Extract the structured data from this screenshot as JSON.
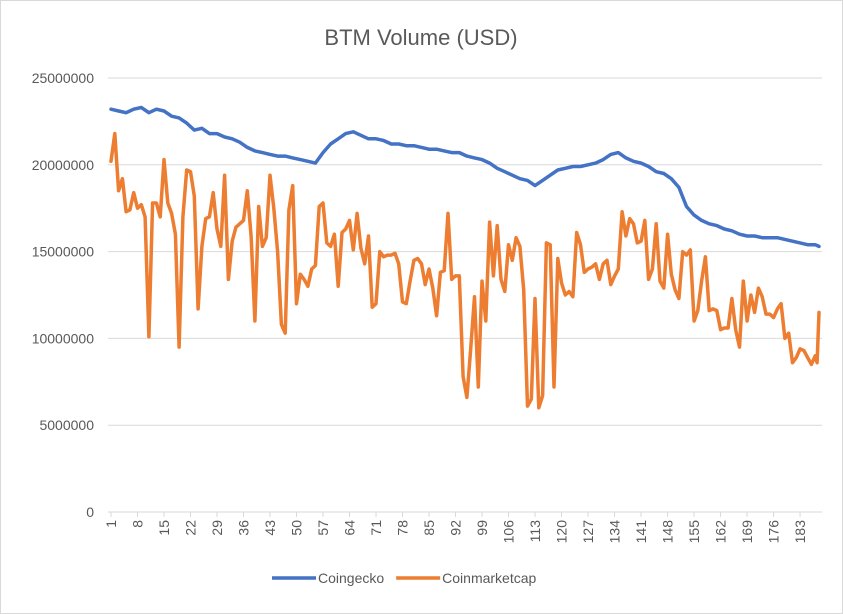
{
  "chart_data": {
    "type": "line",
    "title": "BTM Volume (USD)",
    "xlabel": "",
    "ylabel": "",
    "ylim": [
      0,
      25000000
    ],
    "y_ticks": [
      0,
      5000000,
      10000000,
      15000000,
      20000000,
      25000000
    ],
    "y_tick_labels": [
      "0",
      "5000000",
      "10000000",
      "15000000",
      "20000000",
      "25000000"
    ],
    "x_range": [
      1,
      188
    ],
    "x_ticks": [
      1,
      8,
      15,
      22,
      29,
      36,
      43,
      50,
      57,
      64,
      71,
      78,
      85,
      92,
      99,
      106,
      113,
      120,
      127,
      134,
      141,
      148,
      155,
      162,
      169,
      176,
      183
    ],
    "grid": "horizontal",
    "legend_position": "bottom",
    "series": [
      {
        "name": "Coingecko",
        "color": "#4472C4",
        "points": [
          [
            1,
            23200000
          ],
          [
            3,
            23100000
          ],
          [
            5,
            23000000
          ],
          [
            7,
            23200000
          ],
          [
            9,
            23300000
          ],
          [
            11,
            23000000
          ],
          [
            13,
            23200000
          ],
          [
            15,
            23100000
          ],
          [
            17,
            22800000
          ],
          [
            19,
            22700000
          ],
          [
            21,
            22400000
          ],
          [
            23,
            22000000
          ],
          [
            25,
            22100000
          ],
          [
            27,
            21800000
          ],
          [
            29,
            21800000
          ],
          [
            31,
            21600000
          ],
          [
            33,
            21500000
          ],
          [
            35,
            21300000
          ],
          [
            37,
            21000000
          ],
          [
            39,
            20800000
          ],
          [
            41,
            20700000
          ],
          [
            43,
            20600000
          ],
          [
            45,
            20500000
          ],
          [
            47,
            20500000
          ],
          [
            49,
            20400000
          ],
          [
            51,
            20300000
          ],
          [
            53,
            20200000
          ],
          [
            55,
            20100000
          ],
          [
            57,
            20700000
          ],
          [
            59,
            21200000
          ],
          [
            61,
            21500000
          ],
          [
            63,
            21800000
          ],
          [
            65,
            21900000
          ],
          [
            67,
            21700000
          ],
          [
            69,
            21500000
          ],
          [
            71,
            21500000
          ],
          [
            73,
            21400000
          ],
          [
            75,
            21200000
          ],
          [
            77,
            21200000
          ],
          [
            79,
            21100000
          ],
          [
            81,
            21100000
          ],
          [
            83,
            21000000
          ],
          [
            85,
            20900000
          ],
          [
            87,
            20900000
          ],
          [
            89,
            20800000
          ],
          [
            91,
            20700000
          ],
          [
            93,
            20700000
          ],
          [
            95,
            20500000
          ],
          [
            97,
            20400000
          ],
          [
            99,
            20300000
          ],
          [
            101,
            20100000
          ],
          [
            103,
            19800000
          ],
          [
            105,
            19600000
          ],
          [
            107,
            19400000
          ],
          [
            109,
            19200000
          ],
          [
            111,
            19100000
          ],
          [
            113,
            18800000
          ],
          [
            115,
            19100000
          ],
          [
            117,
            19400000
          ],
          [
            119,
            19700000
          ],
          [
            121,
            19800000
          ],
          [
            123,
            19900000
          ],
          [
            125,
            19900000
          ],
          [
            127,
            20000000
          ],
          [
            129,
            20100000
          ],
          [
            131,
            20300000
          ],
          [
            133,
            20600000
          ],
          [
            135,
            20700000
          ],
          [
            137,
            20400000
          ],
          [
            139,
            20200000
          ],
          [
            141,
            20100000
          ],
          [
            143,
            19900000
          ],
          [
            145,
            19600000
          ],
          [
            147,
            19500000
          ],
          [
            149,
            19200000
          ],
          [
            151,
            18700000
          ],
          [
            153,
            17600000
          ],
          [
            155,
            17100000
          ],
          [
            157,
            16800000
          ],
          [
            159,
            16600000
          ],
          [
            161,
            16500000
          ],
          [
            163,
            16300000
          ],
          [
            165,
            16200000
          ],
          [
            167,
            16000000
          ],
          [
            169,
            15900000
          ],
          [
            171,
            15900000
          ],
          [
            173,
            15800000
          ],
          [
            175,
            15800000
          ],
          [
            177,
            15800000
          ],
          [
            179,
            15700000
          ],
          [
            181,
            15600000
          ],
          [
            183,
            15500000
          ],
          [
            185,
            15400000
          ],
          [
            187,
            15400000
          ],
          [
            188,
            15300000
          ]
        ]
      },
      {
        "name": "Coinmarketcap",
        "color": "#ED7D31",
        "points": [
          [
            1,
            20200000
          ],
          [
            2,
            21800000
          ],
          [
            3,
            18500000
          ],
          [
            4,
            19200000
          ],
          [
            5,
            17300000
          ],
          [
            6,
            17400000
          ],
          [
            7,
            18400000
          ],
          [
            8,
            17500000
          ],
          [
            9,
            17700000
          ],
          [
            10,
            17000000
          ],
          [
            11,
            10100000
          ],
          [
            12,
            17800000
          ],
          [
            13,
            17800000
          ],
          [
            14,
            17000000
          ],
          [
            15,
            20300000
          ],
          [
            16,
            17800000
          ],
          [
            17,
            17200000
          ],
          [
            18,
            16000000
          ],
          [
            19,
            9500000
          ],
          [
            20,
            17000000
          ],
          [
            21,
            19700000
          ],
          [
            22,
            19600000
          ],
          [
            23,
            18200000
          ],
          [
            24,
            11700000
          ],
          [
            25,
            15300000
          ],
          [
            26,
            16900000
          ],
          [
            27,
            17000000
          ],
          [
            28,
            18400000
          ],
          [
            29,
            16300000
          ],
          [
            30,
            15300000
          ],
          [
            31,
            19400000
          ],
          [
            32,
            13400000
          ],
          [
            33,
            15600000
          ],
          [
            34,
            16400000
          ],
          [
            35,
            16600000
          ],
          [
            36,
            16800000
          ],
          [
            37,
            18500000
          ],
          [
            38,
            15900000
          ],
          [
            39,
            11000000
          ],
          [
            40,
            17600000
          ],
          [
            41,
            15300000
          ],
          [
            42,
            15800000
          ],
          [
            43,
            19400000
          ],
          [
            44,
            17500000
          ],
          [
            45,
            15000000
          ],
          [
            46,
            10800000
          ],
          [
            47,
            10300000
          ],
          [
            48,
            17400000
          ],
          [
            49,
            18800000
          ],
          [
            50,
            12000000
          ],
          [
            51,
            13700000
          ],
          [
            52,
            13400000
          ],
          [
            53,
            13000000
          ],
          [
            54,
            14000000
          ],
          [
            55,
            14200000
          ],
          [
            56,
            17600000
          ],
          [
            57,
            17800000
          ],
          [
            58,
            15500000
          ],
          [
            59,
            15300000
          ],
          [
            60,
            16000000
          ],
          [
            61,
            13000000
          ],
          [
            62,
            16100000
          ],
          [
            63,
            16300000
          ],
          [
            64,
            16800000
          ],
          [
            65,
            15100000
          ],
          [
            66,
            17200000
          ],
          [
            67,
            15200000
          ],
          [
            68,
            14300000
          ],
          [
            69,
            15900000
          ],
          [
            70,
            11800000
          ],
          [
            71,
            12000000
          ],
          [
            72,
            15000000
          ],
          [
            73,
            14700000
          ],
          [
            74,
            14800000
          ],
          [
            75,
            14800000
          ],
          [
            76,
            14900000
          ],
          [
            77,
            14300000
          ],
          [
            78,
            12100000
          ],
          [
            79,
            12000000
          ],
          [
            80,
            13300000
          ],
          [
            81,
            14500000
          ],
          [
            82,
            14600000
          ],
          [
            83,
            14300000
          ],
          [
            84,
            13100000
          ],
          [
            85,
            14000000
          ],
          [
            86,
            12900000
          ],
          [
            87,
            11300000
          ],
          [
            88,
            13800000
          ],
          [
            89,
            13900000
          ],
          [
            90,
            17200000
          ],
          [
            91,
            13400000
          ],
          [
            92,
            13600000
          ],
          [
            93,
            13600000
          ],
          [
            94,
            7800000
          ],
          [
            95,
            6600000
          ],
          [
            96,
            9400000
          ],
          [
            97,
            12400000
          ],
          [
            98,
            7200000
          ],
          [
            99,
            13300000
          ],
          [
            100,
            11000000
          ],
          [
            101,
            16700000
          ],
          [
            102,
            13600000
          ],
          [
            103,
            16500000
          ],
          [
            104,
            13400000
          ],
          [
            105,
            12700000
          ],
          [
            106,
            15400000
          ],
          [
            107,
            14500000
          ],
          [
            108,
            15800000
          ],
          [
            109,
            15300000
          ],
          [
            110,
            12800000
          ],
          [
            111,
            6100000
          ],
          [
            112,
            6500000
          ],
          [
            113,
            12300000
          ],
          [
            114,
            6000000
          ],
          [
            115,
            6700000
          ],
          [
            116,
            15500000
          ],
          [
            117,
            15400000
          ],
          [
            118,
            7200000
          ],
          [
            119,
            14600000
          ],
          [
            120,
            13200000
          ],
          [
            121,
            12500000
          ],
          [
            122,
            12700000
          ],
          [
            123,
            12400000
          ],
          [
            124,
            16100000
          ],
          [
            125,
            15400000
          ],
          [
            126,
            13800000
          ],
          [
            127,
            14000000
          ],
          [
            128,
            14100000
          ],
          [
            129,
            14300000
          ],
          [
            130,
            13400000
          ],
          [
            131,
            14300000
          ],
          [
            132,
            14500000
          ],
          [
            133,
            13100000
          ],
          [
            134,
            13600000
          ],
          [
            135,
            14000000
          ],
          [
            136,
            17300000
          ],
          [
            137,
            15900000
          ],
          [
            138,
            16900000
          ],
          [
            139,
            16600000
          ],
          [
            140,
            15500000
          ],
          [
            141,
            15600000
          ],
          [
            142,
            16800000
          ],
          [
            143,
            13400000
          ],
          [
            144,
            14000000
          ],
          [
            145,
            16600000
          ],
          [
            146,
            13300000
          ],
          [
            147,
            12900000
          ],
          [
            148,
            16000000
          ],
          [
            149,
            13700000
          ],
          [
            150,
            12800000
          ],
          [
            151,
            12300000
          ],
          [
            152,
            15000000
          ],
          [
            153,
            14800000
          ],
          [
            154,
            15100000
          ],
          [
            155,
            11000000
          ],
          [
            156,
            11600000
          ],
          [
            157,
            13300000
          ],
          [
            158,
            14700000
          ],
          [
            159,
            11600000
          ],
          [
            160,
            11700000
          ],
          [
            161,
            11600000
          ],
          [
            162,
            10500000
          ],
          [
            163,
            10600000
          ],
          [
            164,
            10600000
          ],
          [
            165,
            12300000
          ],
          [
            166,
            10500000
          ],
          [
            167,
            9500000
          ],
          [
            168,
            13300000
          ],
          [
            169,
            11000000
          ],
          [
            170,
            12500000
          ],
          [
            171,
            11500000
          ],
          [
            172,
            12900000
          ],
          [
            173,
            12400000
          ],
          [
            174,
            11400000
          ],
          [
            175,
            11400000
          ],
          [
            176,
            11200000
          ],
          [
            177,
            11700000
          ],
          [
            178,
            12000000
          ],
          [
            179,
            10000000
          ],
          [
            180,
            10300000
          ],
          [
            181,
            8600000
          ],
          [
            182,
            8900000
          ],
          [
            183,
            9400000
          ],
          [
            184,
            9300000
          ],
          [
            185,
            8900000
          ],
          [
            186,
            8500000
          ],
          [
            187,
            9000000
          ],
          [
            187.5,
            8600000
          ],
          [
            188,
            11500000
          ]
        ]
      }
    ]
  }
}
